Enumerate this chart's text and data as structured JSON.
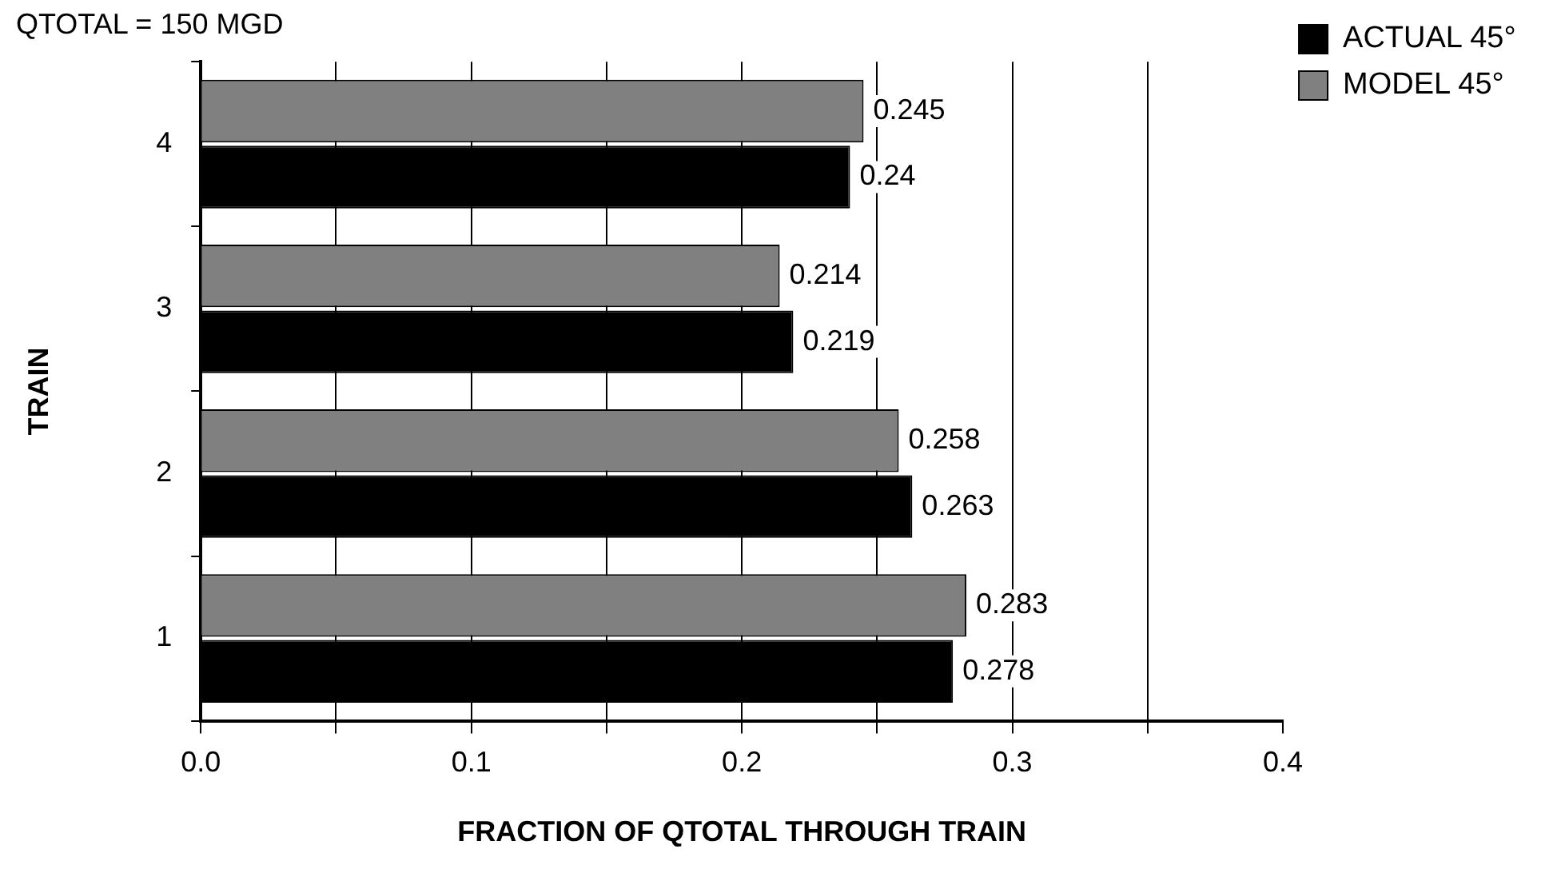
{
  "chart_data": {
    "type": "bar",
    "orientation": "horizontal",
    "title": "QTOTAL = 150 MGD",
    "xlabel": "FRACTION OF QTOTAL THROUGH TRAIN",
    "ylabel": "TRAIN",
    "categories": [
      "4",
      "3",
      "2",
      "1"
    ],
    "series": [
      {
        "name": "ACTUAL 45°",
        "color": "#000000",
        "values": [
          0.24,
          0.219,
          0.263,
          0.278
        ]
      },
      {
        "name": "MODEL 45°",
        "color": "#808080",
        "values": [
          0.245,
          0.214,
          0.258,
          0.283
        ]
      }
    ],
    "xlim": [
      0,
      0.4
    ],
    "xticks": [
      {
        "value": 0,
        "label": "0.0"
      },
      {
        "value": 0.05,
        "label": null
      },
      {
        "value": 0.1,
        "label": "0.1"
      },
      {
        "value": 0.15,
        "label": null
      },
      {
        "value": 0.2,
        "label": "0.2"
      },
      {
        "value": 0.25,
        "label": null
      },
      {
        "value": 0.3,
        "label": "0.3"
      },
      {
        "value": 0.35,
        "label": null
      },
      {
        "value": 0.4,
        "label": "0.4"
      }
    ],
    "grid": "x",
    "legend": "top right",
    "data_labels": true
  }
}
